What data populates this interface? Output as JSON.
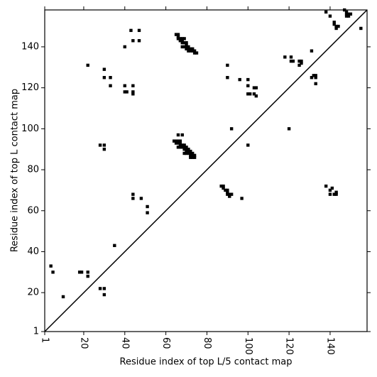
{
  "chart_data": {
    "type": "scatter",
    "xlabel": "Residue index of top L/5 contact map",
    "ylabel": "Residue index of top L contact map",
    "xlim": [
      1,
      158
    ],
    "ylim": [
      1,
      158
    ],
    "xticks": [
      1,
      20,
      40,
      60,
      80,
      100,
      120,
      140
    ],
    "yticks": [
      1,
      20,
      40,
      60,
      80,
      100,
      120,
      140
    ],
    "color": "#000000",
    "diagonal": true,
    "x": [
      4,
      5,
      10,
      18,
      19,
      22,
      22,
      28,
      30,
      30,
      28,
      30,
      30,
      22,
      30,
      30,
      33,
      33,
      35,
      40,
      40,
      40,
      41,
      43,
      44,
      44,
      44,
      44,
      47,
      47,
      44,
      44,
      48,
      51,
      51,
      65,
      66,
      66,
      66,
      67,
      67,
      68,
      68,
      69,
      69,
      68,
      68,
      69,
      70,
      70,
      70,
      70,
      71,
      71,
      71,
      72,
      72,
      73,
      73,
      74,
      74,
      75,
      64,
      65,
      65,
      66,
      66,
      67,
      67,
      67,
      66,
      67,
      68,
      68,
      69,
      69,
      69,
      70,
      70,
      70,
      69,
      70,
      71,
      71,
      71,
      72,
      72,
      72,
      72,
      73,
      73,
      73,
      74,
      74,
      66,
      68,
      87,
      88,
      88,
      89,
      90,
      90,
      90,
      91,
      92,
      91,
      97,
      90,
      90,
      92,
      96,
      100,
      100,
      100,
      101,
      103,
      104,
      103,
      104,
      100,
      118,
      121,
      121,
      122,
      125,
      126,
      126,
      125,
      120,
      131,
      131,
      132,
      133,
      133,
      133,
      138,
      140,
      142,
      142,
      143,
      144,
      143,
      147,
      148,
      148,
      149,
      150,
      149,
      148,
      155,
      138,
      140,
      141,
      140,
      142,
      143,
      143
    ],
    "y": [
      33,
      30,
      18,
      30,
      30,
      30,
      28,
      22,
      22,
      19,
      92,
      92,
      90,
      131,
      129,
      125,
      125,
      121,
      43,
      140,
      121,
      118,
      118,
      148,
      143,
      121,
      118,
      117,
      148,
      143,
      68,
      66,
      66,
      62,
      59,
      146,
      146,
      145,
      144,
      144,
      143,
      144,
      143,
      144,
      142,
      142,
      140,
      140,
      142,
      141,
      140,
      139,
      140,
      139,
      138,
      139,
      138,
      139,
      138,
      138,
      137,
      137,
      94,
      94,
      93,
      94,
      93,
      94,
      93,
      92,
      91,
      91,
      92,
      91,
      92,
      91,
      90,
      91,
      90,
      89,
      88,
      88,
      90,
      89,
      88,
      89,
      88,
      87,
      86,
      88,
      87,
      86,
      87,
      86,
      97,
      97,
      72,
      72,
      71,
      70,
      70,
      69,
      68,
      68,
      68,
      67,
      66,
      131,
      125,
      100,
      124,
      124,
      121,
      117,
      117,
      120,
      120,
      117,
      116,
      92,
      135,
      135,
      133,
      133,
      133,
      133,
      132,
      131,
      100,
      138,
      125,
      126,
      126,
      125,
      122,
      157,
      155,
      152,
      151,
      150,
      150,
      149,
      158,
      157,
      156,
      156,
      156,
      155,
      155,
      149,
      72,
      70,
      71,
      68,
      68,
      69,
      68
    ]
  }
}
